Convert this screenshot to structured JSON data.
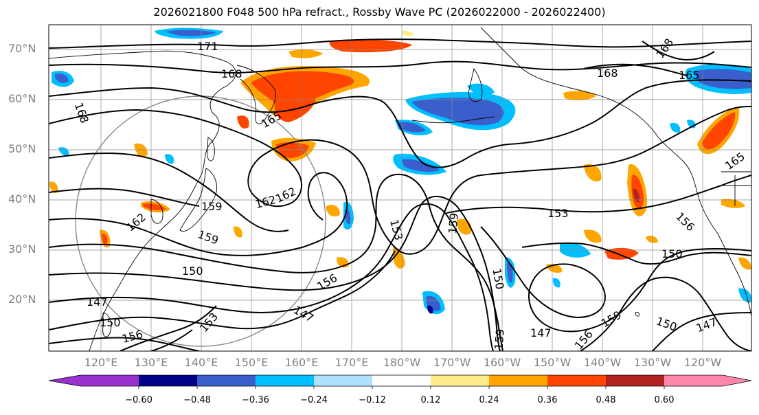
{
  "title": "2026021800 F048 500 hPa refract., Rossby Wave PC (2026022000 - 2026022400)",
  "lat_labels": [
    "70°N",
    "60°N",
    "50°N",
    "40°N",
    "30°N",
    "20°N"
  ],
  "lon_labels": [
    "120°E",
    "130°E",
    "140°E",
    "150°E",
    "160°E",
    "170°E",
    "180°W",
    "170°W",
    "160°W",
    "150°W",
    "140°W",
    "130°W",
    "120°W"
  ],
  "colorbar": {
    "ticks": [
      "−0.60",
      "−0.48",
      "−0.36",
      "−0.24",
      "−0.12",
      "0.12",
      "0.24",
      "0.36",
      "0.48",
      "0.60"
    ],
    "colors": [
      "#9a32cd",
      "#00008b",
      "#3a5fcd",
      "#00bfff",
      "#b0e2ff",
      "#ffffff",
      "#ffec8b",
      "#ffa500",
      "#ff4500",
      "#b22222",
      "#ff88aa"
    ]
  },
  "contour_labels": [
    "171",
    "168",
    "168",
    "168",
    "168",
    "165",
    "165",
    "165",
    "162",
    "162",
    "162",
    "159",
    "159",
    "159",
    "159",
    "159",
    "156",
    "156",
    "156",
    "156",
    "153",
    "153",
    "153",
    "150",
    "150",
    "150",
    "150",
    "150",
    "147",
    "147",
    "147",
    "147"
  ]
}
